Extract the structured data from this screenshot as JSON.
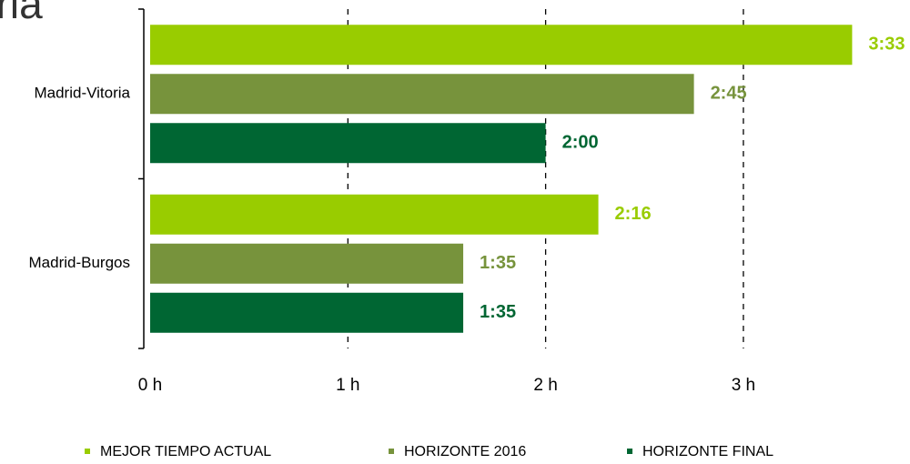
{
  "chart_data": {
    "type": "bar",
    "orientation": "horizontal",
    "title": "oria",
    "categories": [
      "Madrid-Vitoria",
      "Madrid-Burgos"
    ],
    "series": [
      {
        "name": "MEJOR TIEMPO ACTUAL",
        "color": "#99cc00",
        "values": [
          3.55,
          2.2667
        ],
        "value_labels": [
          "3:33",
          "2:16"
        ]
      },
      {
        "name": "HORIZONTE 2016",
        "color": "#77933c",
        "values": [
          2.75,
          1.5833
        ],
        "value_labels": [
          "2:45",
          "1:35"
        ]
      },
      {
        "name": "HORIZONTE FINAL",
        "color": "#006633",
        "values": [
          2,
          1.5833
        ],
        "value_labels": [
          "2:00",
          "1:35"
        ]
      }
    ],
    "xlim": [
      0,
      3.8
    ],
    "xticks": [
      {
        "value": 0,
        "label": "0 h"
      },
      {
        "value": 1,
        "label": "1 h"
      },
      {
        "value": 2,
        "label": "2 h"
      },
      {
        "value": 3,
        "label": "3 h"
      }
    ],
    "grid": true,
    "legend": "bottom"
  }
}
